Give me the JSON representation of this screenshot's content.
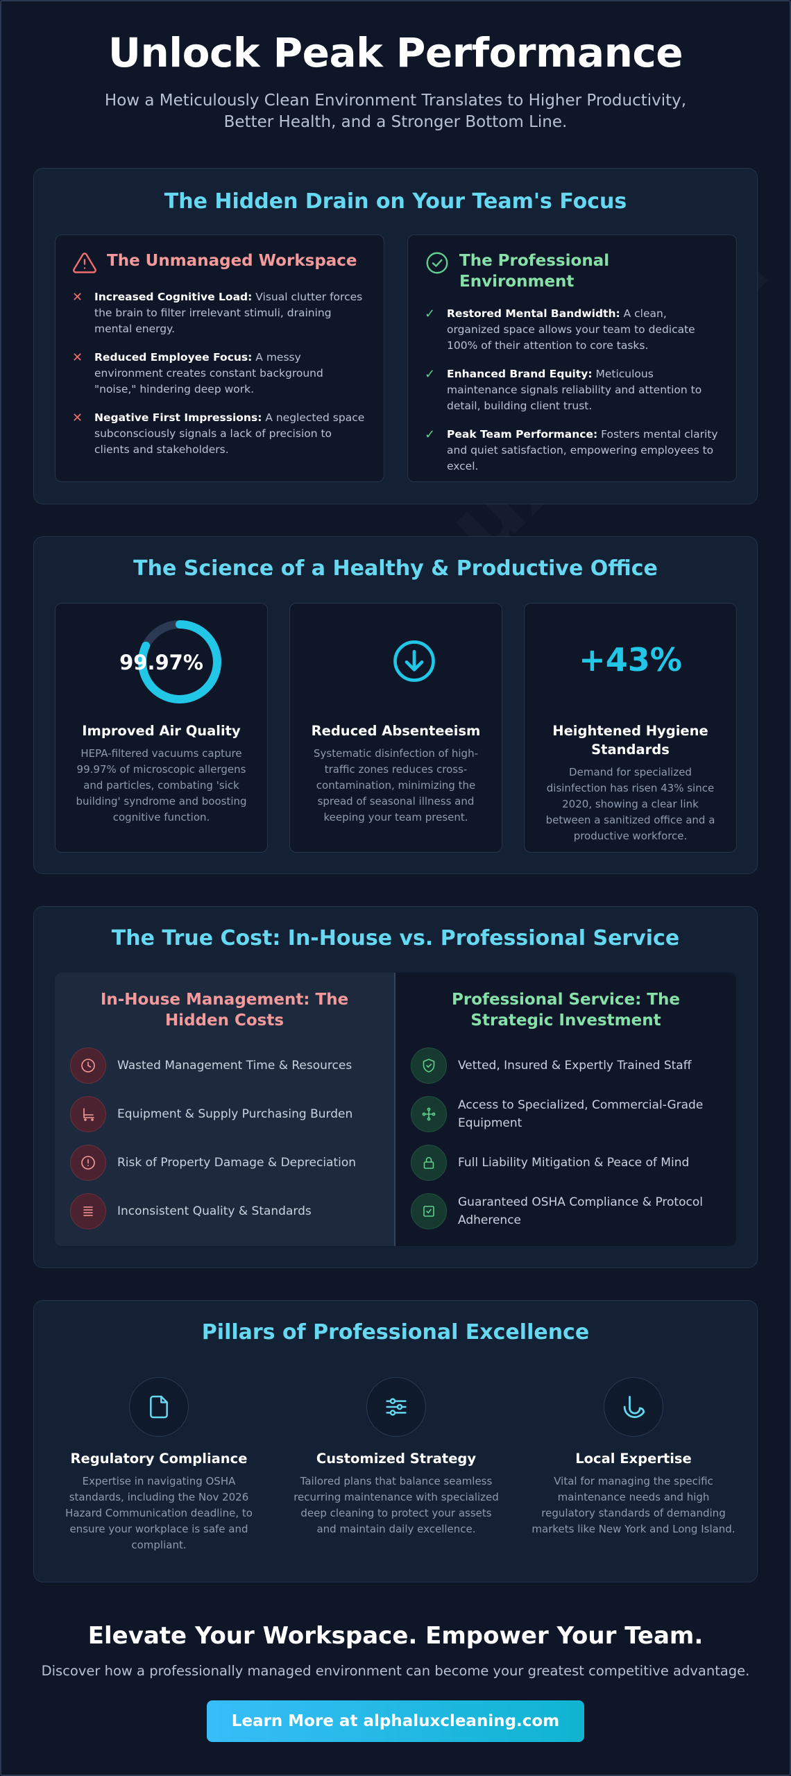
{
  "header": {
    "title": "Unlock Peak Performance",
    "subtitle": "How a Meticulously Clean Environment Translates to Higher Productivity, Better Health, and a Stronger Bottom Line."
  },
  "watermark": "AlphaLuxClean",
  "focus_section": {
    "title": "The Hidden Drain on Your Team's Focus",
    "unmanaged": {
      "title": "The Unmanaged Workspace",
      "icon": "warning-icon",
      "items": [
        {
          "label": "Increased Cognitive Load:",
          "text": " Visual clutter forces the brain to filter irrelevant stimuli, draining mental energy."
        },
        {
          "label": "Reduced Employee Focus:",
          "text": " A messy environment creates constant background \"noise,\" hindering deep work."
        },
        {
          "label": "Negative First Impressions:",
          "text": " A neglected space subconsciously signals a lack of precision to clients and stakeholders."
        }
      ]
    },
    "professional": {
      "title": "The Professional Environment",
      "icon": "check-circle-icon",
      "items": [
        {
          "label": "Restored Mental Bandwidth:",
          "text": " A clean, organized space allows your team to dedicate 100% of their attention to core tasks."
        },
        {
          "label": "Enhanced Brand Equity:",
          "text": " Meticulous maintenance signals reliability and attention to detail, building client trust."
        },
        {
          "label": "Peak Team Performance:",
          "text": " Fosters mental clarity and quiet satisfaction, empowering employees to excel."
        }
      ]
    }
  },
  "science_section": {
    "title": "The Science of a Healthy & Productive Office",
    "cards": [
      {
        "visual": "99.97%",
        "ring_fraction": 0.9997,
        "title": "Improved Air Quality",
        "desc": "HEPA-filtered vacuums capture 99.97% of microscopic allergens and particles, combating 'sick building' syndrome and boosting cognitive function."
      },
      {
        "icon": "arrow-down-circle-icon",
        "title": "Reduced Absenteeism",
        "desc": "Systematic disinfection of high-traffic zones reduces cross-contamination, minimizing the spread of seasonal illness and keeping your team present."
      },
      {
        "visual": "+43%",
        "title": "Heightened Hygiene Standards",
        "desc": "Demand for specialized disinfection has risen 43% since 2020, showing a clear link between a sanitized office and a productive workforce."
      }
    ]
  },
  "cost_section": {
    "title": "The True Cost: In-House vs. Professional Service",
    "in_house": {
      "title": "In-House Management: The Hidden Costs",
      "items": [
        {
          "icon": "clock-icon",
          "text": "Wasted Management Time & Resources"
        },
        {
          "icon": "cart-icon",
          "text": "Equipment & Supply Purchasing Burden"
        },
        {
          "icon": "alert-circle-icon",
          "text": "Risk of Property Damage & Depreciation"
        },
        {
          "icon": "list-icon",
          "text": "Inconsistent Quality & Standards"
        }
      ]
    },
    "professional": {
      "title": "Professional Service: The Strategic Investment",
      "items": [
        {
          "icon": "shield-check-icon",
          "text": "Vetted, Insured & Expertly Trained Staff"
        },
        {
          "icon": "network-icon",
          "text": "Access to Specialized, Commercial-Grade Equipment"
        },
        {
          "icon": "lock-icon",
          "text": "Full Liability Mitigation & Peace of Mind"
        },
        {
          "icon": "checkbox-icon",
          "text": "Guaranteed OSHA Compliance & Protocol Adherence"
        }
      ]
    }
  },
  "pillars_section": {
    "title": "Pillars of Professional Excellence",
    "items": [
      {
        "icon": "document-icon",
        "title": "Regulatory Compliance",
        "desc": "Expertise in navigating OSHA standards, including the Nov 2026 Hazard Communication deadline, to ensure your workplace is safe and compliant."
      },
      {
        "icon": "sliders-icon",
        "title": "Customized Strategy",
        "desc": "Tailored plans that balance seamless recurring maintenance with specialized deep cleaning to protect your assets and maintain daily excellence."
      },
      {
        "icon": "local-icon",
        "title": "Local Expertise",
        "desc": "Vital for managing the specific maintenance needs and high regulatory standards of demanding markets like New York and Long Island."
      }
    ]
  },
  "cta": {
    "title": "Elevate Your Workspace. Empower Your Team.",
    "subtitle": "Discover how a professionally managed environment can become your greatest competitive advantage.",
    "button_label": "Learn More at alphaluxcleaning.com"
  },
  "colors": {
    "background": "#0e1628",
    "card": "#142033",
    "accent_cyan": "#67d8f1",
    "negative": "#f49a9a",
    "positive": "#86e0a8"
  }
}
